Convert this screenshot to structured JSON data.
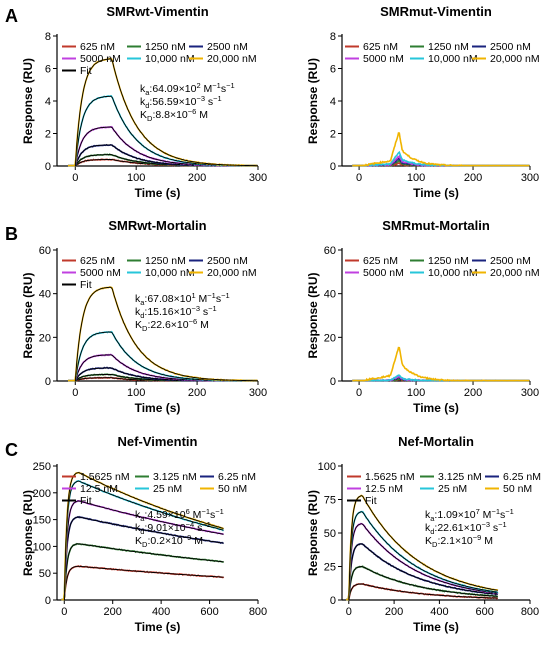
{
  "panel_labels": [
    "A",
    "B",
    "C"
  ],
  "chart_data": [
    {
      "type": "line",
      "panel": "A",
      "title": "SMRwt-Vimentin",
      "xlabel": "Time (s)",
      "ylabel": "Response (RU)",
      "xlim": [
        -30,
        300
      ],
      "ylim": [
        0,
        8
      ],
      "xticks": [
        0,
        100,
        200,
        300
      ],
      "yticks": [
        0,
        2,
        4,
        6,
        8
      ],
      "assoc_end": 60,
      "legend": [
        "625 nM",
        "1250 nM",
        "2500 nM",
        "5000 nM",
        "10,000 nM",
        "20,000 nM",
        "Fit"
      ],
      "series": [
        {
          "name": "625 nM",
          "color": "#c0392b",
          "plateau": 0.4
        },
        {
          "name": "1250 nM",
          "color": "#2e7d32",
          "plateau": 0.7
        },
        {
          "name": "2500 nM",
          "color": "#1a237e",
          "plateau": 1.3
        },
        {
          "name": "5000 nM",
          "color": "#c040e0",
          "plateau": 2.4
        },
        {
          "name": "10,000 nM",
          "color": "#26c6da",
          "plateau": 4.3
        },
        {
          "name": "20,000 nM",
          "color": "#f0b400",
          "plateau": 6.6
        }
      ],
      "fit_color": "#000000",
      "kinetics": {
        "ka_label": "k",
        "ka_sub": "a",
        "ka_value": ":64.09×10",
        "ka_exp": "2",
        "ka_unit": " M",
        "ka_unit_sup": "−1",
        "ka_unit2": "s",
        "ka_unit2_sup": "−1",
        "kd_label": "k",
        "kd_sub": "d",
        "kd_value": ":56.59×10",
        "kd_exp": "−3",
        "kd_unit": " s",
        "kd_unit_sup": "−1",
        "KD_label": "K",
        "KD_sub": "D",
        "KD_value": ":8.8×10",
        "KD_exp": "−6",
        "KD_unit": " M"
      }
    },
    {
      "type": "line",
      "panel": "A",
      "title": "SMRmut-Vimentin",
      "xlabel": "Time (s)",
      "ylabel": "Response (RU)",
      "xlim": [
        -30,
        300
      ],
      "ylim": [
        0,
        8
      ],
      "xticks": [
        0,
        100,
        200,
        300
      ],
      "yticks": [
        0,
        2,
        4,
        6,
        8
      ],
      "legend": [
        "625 nM",
        "1250 nM",
        "2500 nM",
        "5000 nM",
        "10,000 nM",
        "20,000 nM"
      ],
      "series": [
        {
          "name": "625 nM",
          "color": "#c0392b",
          "peak": 0.15
        },
        {
          "name": "1250 nM",
          "color": "#2e7d32",
          "peak": 0.3
        },
        {
          "name": "2500 nM",
          "color": "#1a237e",
          "peak": 0.45
        },
        {
          "name": "5000 nM",
          "color": "#c040e0",
          "peak": 0.6
        },
        {
          "name": "10,000 nM",
          "color": "#26c6da",
          "peak": 0.85
        },
        {
          "name": "20,000 nM",
          "color": "#f0b400",
          "peak": 2.1
        }
      ]
    },
    {
      "type": "line",
      "panel": "B",
      "title": "SMRwt-Mortalin",
      "xlabel": "Time (s)",
      "ylabel": "Response (RU)",
      "xlim": [
        -30,
        300
      ],
      "ylim": [
        0,
        60
      ],
      "xticks": [
        0,
        100,
        200,
        300
      ],
      "yticks": [
        0,
        20,
        40,
        60
      ],
      "assoc_end": 60,
      "legend": [
        "625 nM",
        "1250 nM",
        "2500 nM",
        "5000 nM",
        "10,000 nM",
        "20,000 nM",
        "Fit"
      ],
      "series": [
        {
          "name": "625 nM",
          "color": "#c0392b",
          "plateau": 1.5
        },
        {
          "name": "1250 nM",
          "color": "#2e7d32",
          "plateau": 3
        },
        {
          "name": "2500 nM",
          "color": "#1a237e",
          "plateau": 6
        },
        {
          "name": "5000 nM",
          "color": "#c040e0",
          "plateau": 12
        },
        {
          "name": "10,000 nM",
          "color": "#26c6da",
          "plateau": 22.5
        },
        {
          "name": "20,000 nM",
          "color": "#f0b400",
          "plateau": 43
        }
      ],
      "fit_color": "#000000",
      "kinetics": {
        "ka_label": "k",
        "ka_sub": "a",
        "ka_value": ":67.08×10",
        "ka_exp": "1",
        "ka_unit": " M",
        "ka_unit_sup": "−1",
        "ka_unit2": "s",
        "ka_unit2_sup": "−1",
        "kd_label": "k",
        "kd_sub": "d",
        "kd_value": ":15.16×10",
        "kd_exp": "−3",
        "kd_unit": " s",
        "kd_unit_sup": "−1",
        "KD_label": "K",
        "KD_sub": "D",
        "KD_value": ":22.6×10",
        "KD_exp": "−6",
        "KD_unit": " M"
      }
    },
    {
      "type": "line",
      "panel": "B",
      "title": "SMRmut-Mortalin",
      "xlabel": "Time (s)",
      "ylabel": "Response (RU)",
      "xlim": [
        -30,
        300
      ],
      "ylim": [
        0,
        60
      ],
      "xticks": [
        0,
        100,
        200,
        300
      ],
      "yticks": [
        0,
        20,
        40,
        60
      ],
      "legend": [
        "625 nM",
        "1250 nM",
        "2500 nM",
        "5000 nM",
        "10,000 nM",
        "20,000 nM"
      ],
      "series": [
        {
          "name": "625 nM",
          "color": "#c0392b",
          "peak": 0.5
        },
        {
          "name": "1250 nM",
          "color": "#2e7d32",
          "peak": 1
        },
        {
          "name": "2500 nM",
          "color": "#1a237e",
          "peak": 1.5
        },
        {
          "name": "5000 nM",
          "color": "#c040e0",
          "peak": 2
        },
        {
          "name": "10,000 nM",
          "color": "#26c6da",
          "peak": 2.5
        },
        {
          "name": "20,000 nM",
          "color": "#f0b400",
          "peak": 16
        }
      ]
    },
    {
      "type": "line",
      "panel": "C",
      "title": "Nef-Vimentin",
      "xlabel": "Time (s)",
      "ylabel": "Response (RU)",
      "xlim": [
        -30,
        800
      ],
      "ylim": [
        0,
        250
      ],
      "xticks": [
        0,
        200,
        400,
        600,
        800
      ],
      "yticks": [
        0,
        50,
        100,
        150,
        200,
        250
      ],
      "assoc_end": 60,
      "legend": [
        "1.5625 nM",
        "3.125 nM",
        "6.25 nM",
        "12.5 nM",
        "25 nM",
        "50 nM",
        "Fit"
      ],
      "series": [
        {
          "name": "1.5625 nM",
          "color": "#c0392b",
          "plateau": 63,
          "end": 40
        },
        {
          "name": "3.125 nM",
          "color": "#2e7d32",
          "plateau": 105,
          "end": 67
        },
        {
          "name": "6.25 nM",
          "color": "#1a237e",
          "plateau": 155,
          "end": 100
        },
        {
          "name": "12.5 nM",
          "color": "#c040e0",
          "plateau": 185,
          "end": 115
        },
        {
          "name": "25 nM",
          "color": "#26c6da",
          "plateau": 222,
          "end": 120
        },
        {
          "name": "50 nM",
          "color": "#f0b400",
          "plateau": 238,
          "end": 122
        }
      ],
      "fit_color": "#000000",
      "kinetics": {
        "ka_label": "k",
        "ka_sub": "a",
        "ka_value": ":4.59×10",
        "ka_exp": "6",
        "ka_unit": " M",
        "ka_unit_sup": "−1",
        "ka_unit2": "s",
        "ka_unit2_sup": "−1",
        "kd_label": "k",
        "kd_sub": "d",
        "kd_value": ":9.01×10",
        "kd_exp": "−4",
        "kd_unit": " s",
        "kd_unit_sup": "−1",
        "KD_label": "K",
        "KD_sub": "D",
        "KD_value": ":0.2×10",
        "KD_exp": "−9",
        "KD_unit": " M"
      }
    },
    {
      "type": "line",
      "panel": "C",
      "title": "Nef-Mortalin",
      "xlabel": "Time (s)",
      "ylabel": "Response (RU)",
      "xlim": [
        -30,
        800
      ],
      "ylim": [
        0,
        100
      ],
      "xticks": [
        0,
        200,
        400,
        600,
        800
      ],
      "yticks": [
        0,
        25,
        50,
        75,
        100
      ],
      "assoc_end": 60,
      "legend": [
        "1.5625 nM",
        "3.125 nM",
        "6.25 nM",
        "12.5 nM",
        "25 nM",
        "50 nM",
        "Fit"
      ],
      "series": [
        {
          "name": "1.5625 nM",
          "color": "#c0392b",
          "plateau": 12,
          "end": 1
        },
        {
          "name": "3.125 nM",
          "color": "#2e7d32",
          "plateau": 25,
          "end": 2
        },
        {
          "name": "6.25 nM",
          "color": "#1a237e",
          "plateau": 42,
          "end": 3
        },
        {
          "name": "12.5 nM",
          "color": "#c040e0",
          "plateau": 57,
          "end": 3.5
        },
        {
          "name": "25 nM",
          "color": "#26c6da",
          "plateau": 66,
          "end": 4
        },
        {
          "name": "50 nM",
          "color": "#f0b400",
          "plateau": 78,
          "end": 5
        }
      ],
      "fit_color": "#000000",
      "kinetics": {
        "ka_label": "k",
        "ka_sub": "a",
        "ka_value": ":1.09×10",
        "ka_exp": "7",
        "ka_unit": " M",
        "ka_unit_sup": "−1",
        "ka_unit2": "s",
        "ka_unit2_sup": "−1",
        "kd_label": "k",
        "kd_sub": "d",
        "kd_value": ":22.61×10",
        "kd_exp": "−3",
        "kd_unit": " s",
        "kd_unit_sup": "−1",
        "KD_label": "K",
        "KD_sub": "D",
        "KD_value": ":2.1×10",
        "KD_exp": "−9",
        "KD_unit": " M"
      }
    }
  ]
}
